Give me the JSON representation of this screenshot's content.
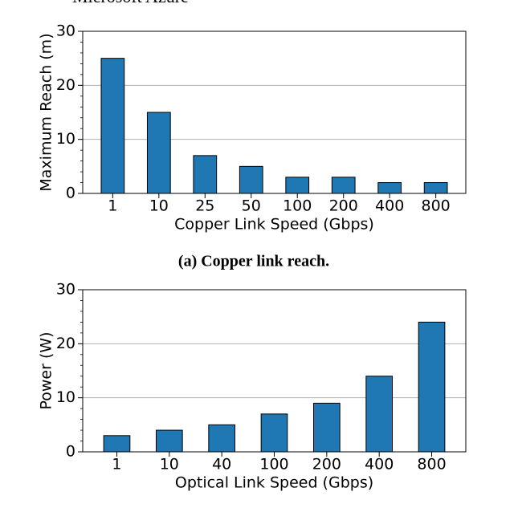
{
  "header_text": "Microsoft Azure",
  "chart_data": [
    {
      "type": "bar",
      "caption": "(a) Copper link reach.",
      "x_label": "Copper Link Speed (Gbps)",
      "y_label": "Maximum Reach (m)",
      "categories": [
        "1",
        "10",
        "25",
        "50",
        "100",
        "200",
        "400",
        "800"
      ],
      "values": [
        25,
        15,
        7,
        5,
        3,
        3,
        2,
        2
      ],
      "color": "#1f77b4",
      "ylim": [
        0,
        30
      ],
      "yticks": [
        0,
        10,
        20,
        30
      ],
      "grid": true
    },
    {
      "type": "bar",
      "x_label": "Optical Link Speed (Gbps)",
      "y_label": "Power (W)",
      "categories": [
        "1",
        "10",
        "40",
        "100",
        "200",
        "400",
        "800"
      ],
      "values": [
        3,
        4,
        5,
        7,
        9,
        14,
        24
      ],
      "color": "#1f77b4",
      "ylim": [
        0,
        30
      ],
      "yticks": [
        0,
        10,
        20,
        30
      ],
      "grid": true
    }
  ]
}
